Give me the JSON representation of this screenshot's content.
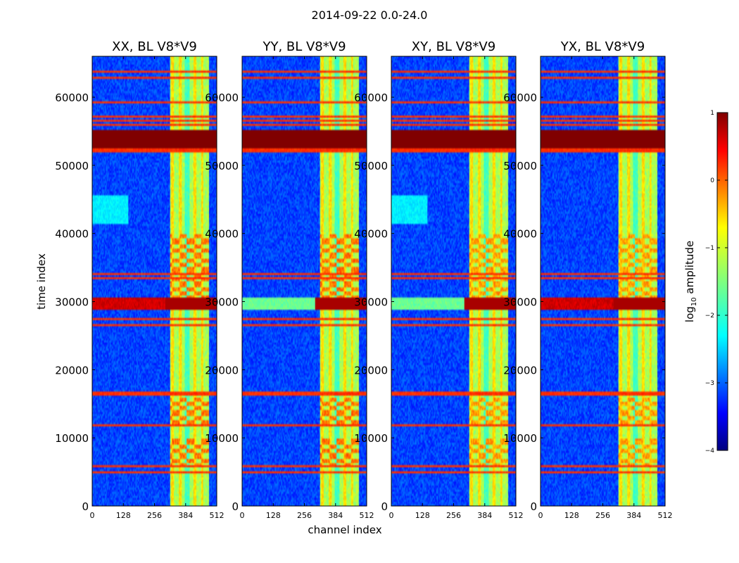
{
  "suptitle": "2014-09-22 0.0-24.0",
  "chart_data": {
    "type": "heatmap",
    "layout": "1x4 waterfall panels sharing colorbar",
    "xlabel": "channel index",
    "ylabel": "time index",
    "xlim": [
      0,
      512
    ],
    "ylim": [
      0,
      66000
    ],
    "xticks": [
      0,
      128,
      256,
      384,
      512
    ],
    "yticks": [
      0,
      10000,
      20000,
      30000,
      40000,
      50000,
      60000
    ],
    "panels": [
      {
        "title": "XX, BL V8*V9",
        "pol": "XX"
      },
      {
        "title": "YY, BL V8*V9",
        "pol": "YY"
      },
      {
        "title": "XY, BL V8*V9",
        "pol": "XY"
      },
      {
        "title": "YX, BL V8*V9",
        "pol": "YX"
      }
    ],
    "colorbar": {
      "label": "log10 amplitude",
      "label_base": "log",
      "label_sub": "10",
      "label_rest": " amplitude",
      "ticks": [
        1,
        0,
        -1,
        -2,
        -3,
        -4
      ],
      "tick_labels": [
        "1",
        "0",
        "−1",
        "−2",
        "−3",
        "−4"
      ],
      "range": [
        -4,
        1
      ],
      "colormap": "jet"
    },
    "features": {
      "rfi_channel_band": [
        320,
        480
      ],
      "rfi_subchannels": [
        330,
        362,
        392,
        422,
        452
      ],
      "saturated_time_band": [
        52500,
        55200
      ],
      "strong_burst_time": [
        28800,
        30600
      ],
      "bright_rows": [
        5000,
        5800,
        11800,
        16500,
        26500,
        27500,
        33500,
        34000,
        52200,
        56000,
        56600,
        57200,
        59200,
        62800,
        63700
      ]
    }
  }
}
